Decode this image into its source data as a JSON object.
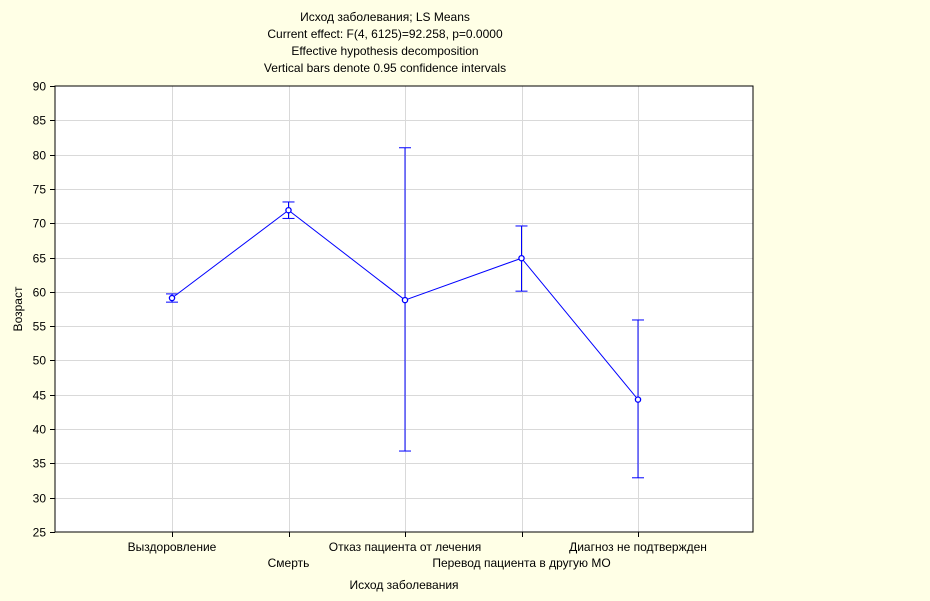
{
  "chart_data": {
    "type": "line",
    "title_lines": [
      "Исход заболевания; LS Means",
      "Current effect: F(4, 6125)=92.258, p=0.0000",
      "Effective hypothesis decomposition",
      "Vertical bars denote 0.95 confidence intervals"
    ],
    "xlabel": "Исход заболевания",
    "ylabel": "Возраст",
    "ylim": [
      25,
      90
    ],
    "y_ticks": [
      25,
      30,
      35,
      40,
      45,
      50,
      55,
      60,
      65,
      70,
      75,
      80,
      85,
      90
    ],
    "grid": true,
    "categories": [
      "Выздоровление",
      "Смерть",
      "Отказ пациента от лечения",
      "Перевод пациента в другую МО",
      "Диагноз не подтвержден"
    ],
    "category_label_rows": [
      0,
      1,
      0,
      1,
      0
    ],
    "series": [
      {
        "values": [
          59.1,
          71.9,
          58.8,
          64.9,
          44.3
        ],
        "ci_lower": [
          58.5,
          70.7,
          36.8,
          60.1,
          32.9
        ],
        "ci_upper": [
          59.7,
          73.1,
          81.0,
          69.6,
          55.9
        ]
      }
    ],
    "colors": {
      "background": "#ffffe6",
      "plot_background": "#ffffff",
      "series": "#0000ff",
      "grid": "#d9d9d9",
      "axis": "#000000"
    }
  }
}
